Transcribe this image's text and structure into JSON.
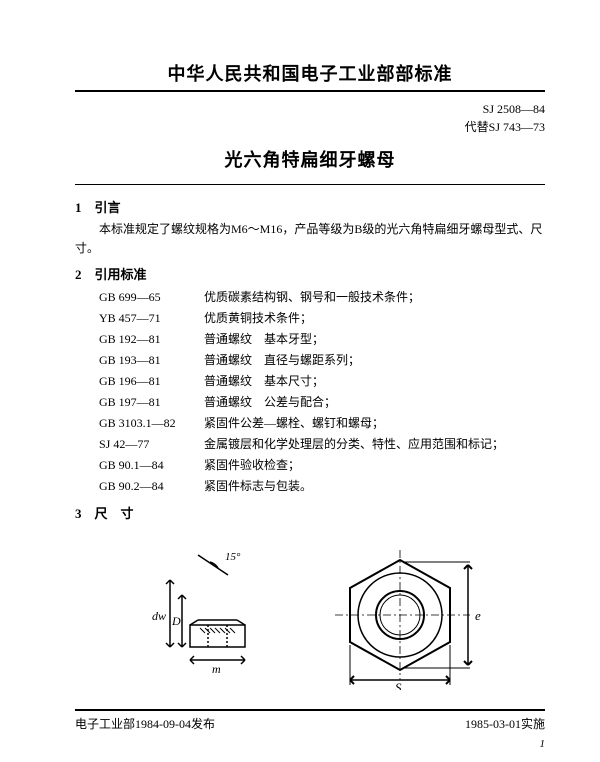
{
  "header": {
    "org_title": "中华人民共和国电子工业部部标准",
    "std_code": "SJ 2508—84",
    "replaces": "代替SJ 743—73",
    "doc_title": "光六角特扁细牙螺母"
  },
  "sections": {
    "s1_head": "1　引言",
    "s1_body": "本标准规定了螺纹规格为M6～M16，产品等级为B级的光六角特扁细牙螺母型式、尺寸。",
    "s2_head": "2　引用标准",
    "refs": [
      {
        "code": "GB 699—65",
        "desc": "优质碳素结构钢、钢号和一般技术条件；"
      },
      {
        "code": "YB 457—71",
        "desc": "优质黄铜技术条件；"
      },
      {
        "code": "GB 192—81",
        "desc": "普通螺纹　基本牙型；"
      },
      {
        "code": "GB 193—81",
        "desc": "普通螺纹　直径与螺距系列；"
      },
      {
        "code": "GB 196—81",
        "desc": "普通螺纹　基本尺寸；"
      },
      {
        "code": "GB 197—81",
        "desc": "普通螺纹　公差与配合；"
      },
      {
        "code": "GB 3103.1—82",
        "desc": "紧固件公差—螺栓、螺钉和螺母；"
      },
      {
        "code": "SJ 42—77",
        "desc": "金属镀层和化学处理层的分类、特性、应用范围和标记；"
      },
      {
        "code": "GB 90.1—84",
        "desc": "紧固件验收检查；"
      },
      {
        "code": "GB 90.2—84",
        "desc": "紧固件标志与包装。"
      }
    ],
    "s3_head": "3　尺　寸"
  },
  "diagram": {
    "angle_label": "15°",
    "dim_dw": "dw",
    "dim_D": "D",
    "dim_m": "m",
    "dim_s": "S",
    "dim_e": "e",
    "stroke": "#000000",
    "fill_hatch": "#000000"
  },
  "footer": {
    "issued": "电子工业部1984-09-04发布",
    "effective": "1985-03-01实施",
    "page": "1"
  }
}
